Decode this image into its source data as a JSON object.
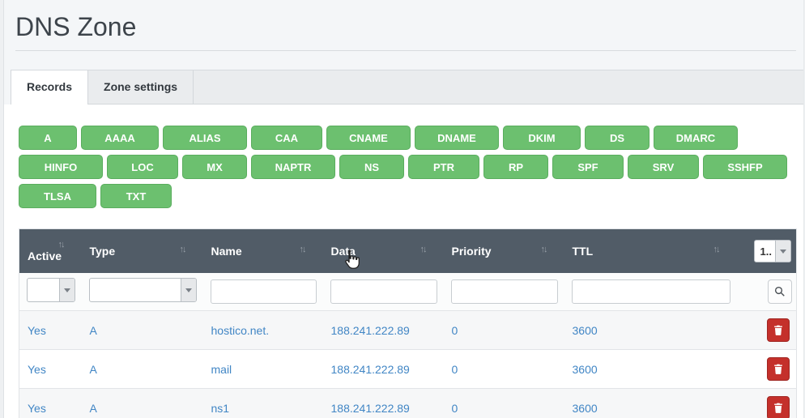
{
  "page_title": "DNS Zone",
  "tabs": [
    {
      "label": "Records",
      "active": true
    },
    {
      "label": "Zone settings",
      "active": false
    }
  ],
  "record_type_buttons": [
    [
      "A",
      "AAAA",
      "ALIAS",
      "CAA",
      "CNAME",
      "DNAME",
      "DKIM",
      "DS",
      "DMARC"
    ],
    [
      "HINFO",
      "LOC",
      "MX",
      "NAPTR",
      "NS",
      "PTR",
      "RP",
      "SPF",
      "SRV",
      "SSHFP"
    ],
    [
      "TLSA",
      "TXT"
    ]
  ],
  "table": {
    "columns": [
      {
        "label": "Active"
      },
      {
        "label": "Type"
      },
      {
        "label": "Name"
      },
      {
        "label": "Data"
      },
      {
        "label": "Priority"
      },
      {
        "label": "TTL"
      }
    ],
    "sort_icon": "↑↓",
    "page_select_value": "1..",
    "filter_values": {
      "active": "",
      "type": "",
      "name": "",
      "data": "",
      "priority": "",
      "ttl": ""
    },
    "rows": [
      {
        "active": "Yes",
        "type": "A",
        "name": "hostico.net.",
        "data": "188.241.222.89",
        "priority": "0",
        "ttl": "3600"
      },
      {
        "active": "Yes",
        "type": "A",
        "name": "mail",
        "data": "188.241.222.89",
        "priority": "0",
        "ttl": "3600"
      },
      {
        "active": "Yes",
        "type": "A",
        "name": "ns1",
        "data": "188.241.222.89",
        "priority": "0",
        "ttl": "3600"
      }
    ]
  },
  "icons": {
    "sort": "sort-arrows-icon",
    "search": "magnifier-icon",
    "delete": "trash-icon",
    "select_caret": "caret-down-icon",
    "cursor": "hand-pointer-cursor"
  },
  "colors": {
    "header_bg": "#515c67",
    "button_green": "#6cc06f",
    "delete_red": "#c4302b",
    "link_blue": "#4186c5",
    "tabstrip_bg": "#eaecee"
  }
}
